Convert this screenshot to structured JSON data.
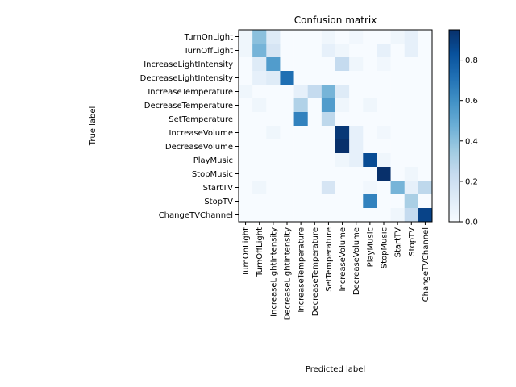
{
  "chart_data": {
    "type": "heatmap",
    "title": "Confusion matrix",
    "xlabel": "Predicted label",
    "ylabel": "True label",
    "row_labels": [
      "TurnOnLight",
      "TurnOffLight",
      "IncreaseLightIntensity",
      "DecreaseLightIntensity",
      "IncreaseTemperature",
      "DecreaseTemperature",
      "SetTemperature",
      "IncreaseVolume",
      "DecreaseVolume",
      "PlayMusic",
      "StopMusic",
      "StartTV",
      "StopTV",
      "ChangeTVChannel"
    ],
    "col_labels": [
      "TurnOnLight",
      "TurnOffLight",
      "IncreaseLightIntensity",
      "DecreaseLightIntensity",
      "IncreaseTemperature",
      "DecreaseTemperature",
      "SetTemperature",
      "IncreaseVolume",
      "DecreaseVolume",
      "PlayMusic",
      "StopMusic",
      "StartTV",
      "StopTV",
      "ChangeTVChannel"
    ],
    "values": [
      [
        0.04,
        0.4,
        0.12,
        0.0,
        0.0,
        0.0,
        0.04,
        0.0,
        0.03,
        0.0,
        0.0,
        0.04,
        0.08,
        0.0
      ],
      [
        0.04,
        0.45,
        0.16,
        0.0,
        0.0,
        0.0,
        0.08,
        0.04,
        0.0,
        0.0,
        0.08,
        0.0,
        0.08,
        0.0
      ],
      [
        0.0,
        0.12,
        0.55,
        0.0,
        0.0,
        0.0,
        0.0,
        0.24,
        0.04,
        0.0,
        0.03,
        0.0,
        0.0,
        0.0
      ],
      [
        0.0,
        0.08,
        0.12,
        0.72,
        0.0,
        0.0,
        0.0,
        0.0,
        0.0,
        0.0,
        0.0,
        0.0,
        0.0,
        0.0
      ],
      [
        0.04,
        0.0,
        0.0,
        0.0,
        0.08,
        0.24,
        0.45,
        0.12,
        0.0,
        0.0,
        0.0,
        0.0,
        0.0,
        0.0
      ],
      [
        0.0,
        0.04,
        0.0,
        0.0,
        0.3,
        0.0,
        0.55,
        0.04,
        0.0,
        0.04,
        0.0,
        0.0,
        0.0,
        0.0
      ],
      [
        0.0,
        0.0,
        0.0,
        0.0,
        0.65,
        0.0,
        0.26,
        0.0,
        0.0,
        0.0,
        0.0,
        0.0,
        0.0,
        0.0
      ],
      [
        0.0,
        0.0,
        0.04,
        0.0,
        0.0,
        0.0,
        0.0,
        0.92,
        0.08,
        0.0,
        0.03,
        0.0,
        0.0,
        0.0
      ],
      [
        0.0,
        0.0,
        0.0,
        0.0,
        0.0,
        0.0,
        0.0,
        0.95,
        0.08,
        0.0,
        0.0,
        0.0,
        0.0,
        0.0
      ],
      [
        0.0,
        0.0,
        0.0,
        0.0,
        0.0,
        0.0,
        0.0,
        0.04,
        0.08,
        0.85,
        0.04,
        0.0,
        0.0,
        0.0
      ],
      [
        0.0,
        0.0,
        0.0,
        0.0,
        0.0,
        0.0,
        0.0,
        0.0,
        0.0,
        0.0,
        0.95,
        0.0,
        0.04,
        0.0
      ],
      [
        0.0,
        0.04,
        0.0,
        0.0,
        0.0,
        0.0,
        0.16,
        0.0,
        0.0,
        0.03,
        0.0,
        0.45,
        0.08,
        0.26
      ],
      [
        0.0,
        0.0,
        0.0,
        0.0,
        0.0,
        0.0,
        0.0,
        0.0,
        0.0,
        0.65,
        0.0,
        0.0,
        0.32,
        0.0
      ],
      [
        0.0,
        0.0,
        0.0,
        0.0,
        0.0,
        0.0,
        0.0,
        0.0,
        0.0,
        0.0,
        0.0,
        0.04,
        0.24,
        0.88
      ]
    ],
    "colorbar": {
      "range": [
        0,
        0.95
      ],
      "ticks": [
        0.0,
        0.2,
        0.4,
        0.6,
        0.8
      ],
      "colormap": "Blues"
    },
    "colors": {
      "low": "#f7fbff",
      "high": "#08306b"
    }
  }
}
